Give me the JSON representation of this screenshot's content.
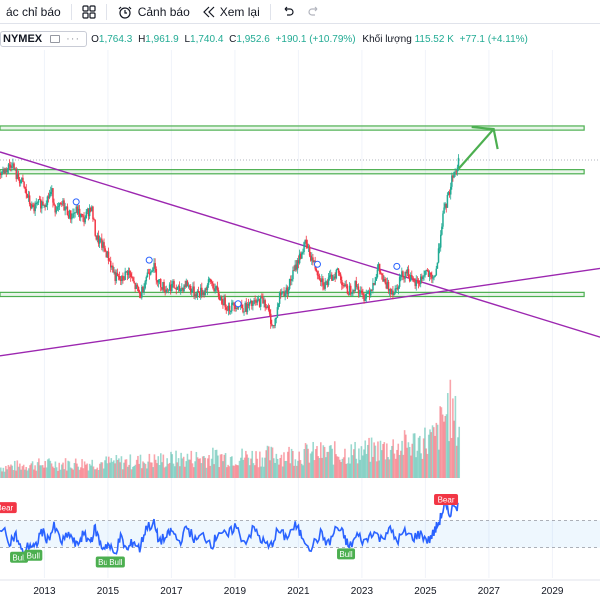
{
  "toolbar": {
    "indicators_label": "ác chỉ báo",
    "alerts_label": "Cảnh báo",
    "replay_label": "Xem lại"
  },
  "legend": {
    "symbol": "NYMEX",
    "o_label": "O",
    "o_value": "1,764.3",
    "h_label": "H",
    "h_value": "1,961.9",
    "l_label": "L",
    "l_value": "1,740.4",
    "c_label": "C",
    "c_value": "1,952.6",
    "change": "+190.1 (+10.79%)",
    "volume_label": "Khối lượng",
    "volume_value": "115.52 K",
    "volume_change": "+77.1 (+4.11%)"
  },
  "colors": {
    "up": "#22ab94",
    "down": "#f23645",
    "zone": "#4caf50",
    "trendline": "#9c27b0",
    "oscillator": "#2962ff",
    "bear_badge": "#f23645",
    "bull_badge": "#4caf50"
  },
  "chart_data": {
    "type": "line",
    "x_axis_labels": [
      "2013",
      "2015",
      "2017",
      "2019",
      "2021",
      "2023",
      "2025",
      "2027",
      "2029"
    ],
    "x_range": [
      2011.6,
      2030.5
    ],
    "price_series": [
      [
        2011.6,
        0.78
      ],
      [
        2011.8,
        0.8
      ],
      [
        2011.95,
        0.83
      ],
      [
        2012.1,
        0.76
      ],
      [
        2012.25,
        0.74
      ],
      [
        2012.45,
        0.66
      ],
      [
        2012.6,
        0.6
      ],
      [
        2012.8,
        0.63
      ],
      [
        2013.0,
        0.64
      ],
      [
        2013.2,
        0.69
      ],
      [
        2013.35,
        0.59
      ],
      [
        2013.55,
        0.63
      ],
      [
        2013.8,
        0.57
      ],
      [
        2014.0,
        0.6
      ],
      [
        2014.2,
        0.55
      ],
      [
        2014.45,
        0.62
      ],
      [
        2014.6,
        0.47
      ],
      [
        2014.8,
        0.43
      ],
      [
        2015.0,
        0.37
      ],
      [
        2015.2,
        0.28
      ],
      [
        2015.4,
        0.26
      ],
      [
        2015.6,
        0.31
      ],
      [
        2015.8,
        0.24
      ],
      [
        2016.0,
        0.19
      ],
      [
        2016.2,
        0.29
      ],
      [
        2016.4,
        0.34
      ],
      [
        2016.55,
        0.26
      ],
      [
        2016.8,
        0.22
      ],
      [
        2017.0,
        0.24
      ],
      [
        2017.2,
        0.21
      ],
      [
        2017.45,
        0.25
      ],
      [
        2017.7,
        0.2
      ],
      [
        2018.0,
        0.21
      ],
      [
        2018.2,
        0.26
      ],
      [
        2018.35,
        0.22
      ],
      [
        2018.55,
        0.17
      ],
      [
        2018.8,
        0.13
      ],
      [
        2019.0,
        0.15
      ],
      [
        2019.3,
        0.13
      ],
      [
        2019.6,
        0.15
      ],
      [
        2019.9,
        0.17
      ],
      [
        2020.05,
        0.1
      ],
      [
        2020.2,
        0.03
      ],
      [
        2020.4,
        0.2
      ],
      [
        2020.6,
        0.21
      ],
      [
        2020.8,
        0.29
      ],
      [
        2021.0,
        0.37
      ],
      [
        2021.2,
        0.44
      ],
      [
        2021.5,
        0.33
      ],
      [
        2021.8,
        0.24
      ],
      [
        2022.0,
        0.27
      ],
      [
        2022.2,
        0.31
      ],
      [
        2022.5,
        0.21
      ],
      [
        2022.8,
        0.24
      ],
      [
        2023.0,
        0.18
      ],
      [
        2023.25,
        0.22
      ],
      [
        2023.5,
        0.32
      ],
      [
        2023.7,
        0.24
      ],
      [
        2024.0,
        0.21
      ],
      [
        2024.2,
        0.28
      ],
      [
        2024.4,
        0.31
      ],
      [
        2024.6,
        0.24
      ],
      [
        2024.8,
        0.26
      ],
      [
        2025.0,
        0.31
      ],
      [
        2025.2,
        0.25
      ],
      [
        2025.35,
        0.34
      ],
      [
        2025.5,
        0.55
      ],
      [
        2025.6,
        0.61
      ],
      [
        2025.75,
        0.7
      ],
      [
        2025.85,
        0.78
      ],
      [
        2026.0,
        0.8
      ],
      [
        2026.05,
        0.9
      ]
    ],
    "horizontal_zones": [
      {
        "from": 2011.6,
        "to": 2030.0,
        "low": 0.985,
        "high": 1.005
      },
      {
        "from": 2011.6,
        "to": 2030.0,
        "low": 0.775,
        "high": 0.795
      },
      {
        "from": 2011.6,
        "to": 2030.0,
        "low": 0.185,
        "high": 0.205
      }
    ],
    "trendlines": [
      {
        "from": [
          2011.6,
          0.88
        ],
        "to": [
          2030.5,
          -0.01
        ]
      },
      {
        "from": [
          2011.6,
          -0.1
        ],
        "to": [
          2030.5,
          0.32
        ]
      }
    ],
    "projection_arrow": {
      "from": [
        2026.05,
        0.8
      ],
      "to": [
        2027.15,
        0.99
      ]
    },
    "oscillator": {
      "range": [
        0,
        100
      ],
      "band": [
        30,
        70
      ],
      "series": [
        [
          2011.6,
          62
        ],
        [
          2011.9,
          40
        ],
        [
          2012.1,
          48
        ],
        [
          2012.3,
          22
        ],
        [
          2012.55,
          35
        ],
        [
          2012.7,
          28
        ],
        [
          2012.9,
          55
        ],
        [
          2013.1,
          42
        ],
        [
          2013.3,
          60
        ],
        [
          2013.55,
          38
        ],
        [
          2013.8,
          50
        ],
        [
          2014.0,
          32
        ],
        [
          2014.2,
          48
        ],
        [
          2014.45,
          40
        ],
        [
          2014.6,
          58
        ],
        [
          2014.8,
          30
        ],
        [
          2015.0,
          35
        ],
        [
          2015.2,
          20
        ],
        [
          2015.4,
          45
        ],
        [
          2015.6,
          25
        ],
        [
          2015.8,
          40
        ],
        [
          2016.0,
          28
        ],
        [
          2016.2,
          60
        ],
        [
          2016.45,
          65
        ],
        [
          2016.6,
          40
        ],
        [
          2016.85,
          45
        ],
        [
          2017.0,
          55
        ],
        [
          2017.25,
          38
        ],
        [
          2017.5,
          60
        ],
        [
          2017.75,
          40
        ],
        [
          2018.0,
          48
        ],
        [
          2018.3,
          35
        ],
        [
          2018.5,
          55
        ],
        [
          2018.75,
          45
        ],
        [
          2019.0,
          62
        ],
        [
          2019.3,
          38
        ],
        [
          2019.6,
          58
        ],
        [
          2019.85,
          40
        ],
        [
          2020.1,
          30
        ],
        [
          2020.35,
          55
        ],
        [
          2020.6,
          45
        ],
        [
          2020.9,
          62
        ],
        [
          2021.1,
          48
        ],
        [
          2021.4,
          30
        ],
        [
          2021.7,
          50
        ],
        [
          2021.95,
          35
        ],
        [
          2022.2,
          60
        ],
        [
          2022.4,
          50
        ],
        [
          2022.6,
          30
        ],
        [
          2022.85,
          48
        ],
        [
          2023.1,
          38
        ],
        [
          2023.35,
          55
        ],
        [
          2023.6,
          42
        ],
        [
          2023.85,
          58
        ],
        [
          2024.1,
          40
        ],
        [
          2024.35,
          52
        ],
        [
          2024.6,
          45
        ],
        [
          2024.85,
          50
        ],
        [
          2025.1,
          40
        ],
        [
          2025.3,
          55
        ],
        [
          2025.45,
          70
        ],
        [
          2025.6,
          92
        ],
        [
          2025.75,
          78
        ],
        [
          2025.9,
          95
        ],
        [
          2026.05,
          90
        ]
      ],
      "badges": [
        {
          "label": "Bear",
          "x": 2011.75,
          "value": 88
        },
        {
          "label": "Bull",
          "x": 2012.2,
          "value": 15
        },
        {
          "label": "Bull",
          "x": 2012.65,
          "value": 18
        },
        {
          "label": "Bull",
          "x": 2014.9,
          "value": 8
        },
        {
          "label": "Bull",
          "x": 2015.25,
          "value": 8
        },
        {
          "label": "Bull",
          "x": 2022.5,
          "value": 20
        },
        {
          "label": "Bear",
          "x": 2025.65,
          "value": 100
        }
      ]
    },
    "volume_series": [
      [
        2011.6,
        0.12
      ],
      [
        2012.5,
        0.15
      ],
      [
        2013.5,
        0.16
      ],
      [
        2014.5,
        0.17
      ],
      [
        2015.5,
        0.18
      ],
      [
        2016.5,
        0.2
      ],
      [
        2017.5,
        0.22
      ],
      [
        2018.5,
        0.24
      ],
      [
        2019.5,
        0.24
      ],
      [
        2020.5,
        0.26
      ],
      [
        2021.5,
        0.28
      ],
      [
        2022.5,
        0.28
      ],
      [
        2023.5,
        0.32
      ],
      [
        2024.5,
        0.38
      ],
      [
        2025.3,
        0.45
      ],
      [
        2025.7,
        0.8
      ],
      [
        2026.05,
        0.55
      ]
    ]
  }
}
